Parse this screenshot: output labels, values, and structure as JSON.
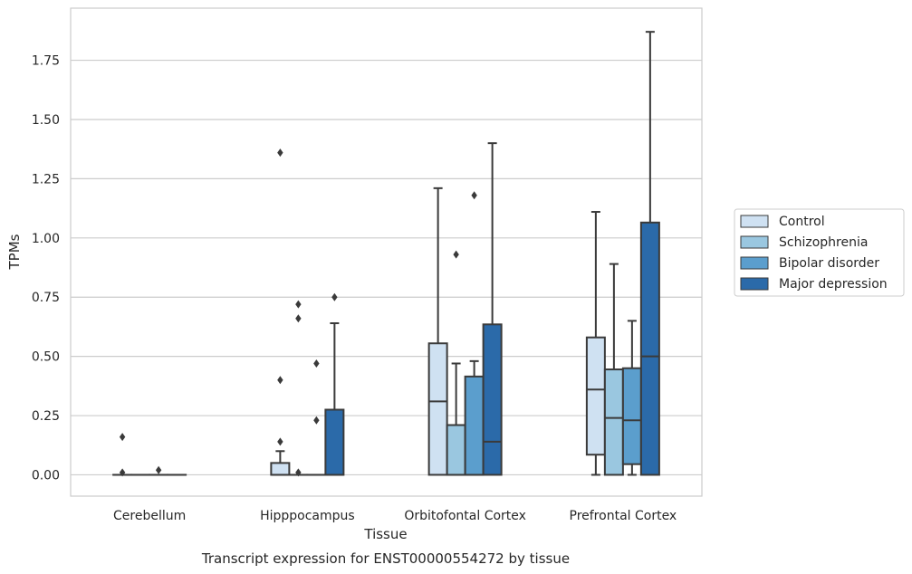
{
  "chart_data": {
    "type": "box",
    "title": "",
    "caption": "Transcript expression for ENST00000554272 by tissue",
    "xlabel": "Tissue",
    "ylabel": "TPMs",
    "ylim": [
      -0.09,
      1.97
    ],
    "yticks": [
      0.0,
      0.25,
      0.5,
      0.75,
      1.0,
      1.25,
      1.5,
      1.75
    ],
    "ytick_labels": [
      "0.00",
      "0.25",
      "0.50",
      "0.75",
      "1.00",
      "1.25",
      "1.50",
      "1.75"
    ],
    "grid": true,
    "legend_position": "right",
    "categories": [
      "Cerebellum",
      "Hipppocampus",
      "Orbitofontal Cortex",
      "Prefrontal Cortex"
    ],
    "series": [
      {
        "name": "Control",
        "color": "#cfe1f2",
        "boxes": [
          {
            "min": 0,
            "q1": 0,
            "median": 0,
            "q3": 0,
            "max": 0,
            "outliers": [
              0.16,
              0.01
            ]
          },
          {
            "min": 0,
            "q1": 0,
            "median": 0,
            "q3": 0.05,
            "max": 0.1,
            "outliers": [
              1.36,
              0.4,
              0.14
            ]
          },
          {
            "min": 0,
            "q1": 0,
            "median": 0.31,
            "q3": 0.555,
            "max": 1.21,
            "outliers": []
          },
          {
            "min": 0,
            "q1": 0.085,
            "median": 0.36,
            "q3": 0.58,
            "max": 1.11,
            "outliers": []
          }
        ]
      },
      {
        "name": "Schizophrenia",
        "color": "#9ac7e0",
        "boxes": [
          {
            "min": 0,
            "q1": 0,
            "median": 0,
            "q3": 0,
            "max": 0,
            "outliers": []
          },
          {
            "min": 0,
            "q1": 0,
            "median": 0,
            "q3": 0,
            "max": 0,
            "outliers": [
              0.72,
              0.66,
              0.01
            ]
          },
          {
            "min": 0,
            "q1": 0,
            "median": 0,
            "q3": 0.21,
            "max": 0.47,
            "outliers": [
              0.93
            ]
          },
          {
            "min": 0,
            "q1": 0,
            "median": 0.24,
            "q3": 0.445,
            "max": 0.89,
            "outliers": []
          }
        ]
      },
      {
        "name": "Bipolar disorder",
        "color": "#5b9ecd",
        "boxes": [
          {
            "min": 0,
            "q1": 0,
            "median": 0,
            "q3": 0,
            "max": 0,
            "outliers": [
              0.02
            ]
          },
          {
            "min": 0,
            "q1": 0,
            "median": 0,
            "q3": 0,
            "max": 0,
            "outliers": [
              0.47,
              0.23
            ]
          },
          {
            "min": 0,
            "q1": 0,
            "median": 0,
            "q3": 0.415,
            "max": 0.48,
            "outliers": [
              1.18
            ]
          },
          {
            "min": 0,
            "q1": 0.045,
            "median": 0.23,
            "q3": 0.45,
            "max": 0.65,
            "outliers": []
          }
        ]
      },
      {
        "name": "Major depression",
        "color": "#2b6aa9",
        "boxes": [
          {
            "min": 0,
            "q1": 0,
            "median": 0,
            "q3": 0,
            "max": 0,
            "outliers": []
          },
          {
            "min": 0,
            "q1": 0,
            "median": 0,
            "q3": 0.275,
            "max": 0.64,
            "outliers": [
              0.75
            ]
          },
          {
            "min": 0,
            "q1": 0,
            "median": 0.14,
            "q3": 0.635,
            "max": 1.4,
            "outliers": []
          },
          {
            "min": 0,
            "q1": 0,
            "median": 0.5,
            "q3": 1.065,
            "max": 1.87,
            "outliers": []
          }
        ]
      }
    ]
  }
}
